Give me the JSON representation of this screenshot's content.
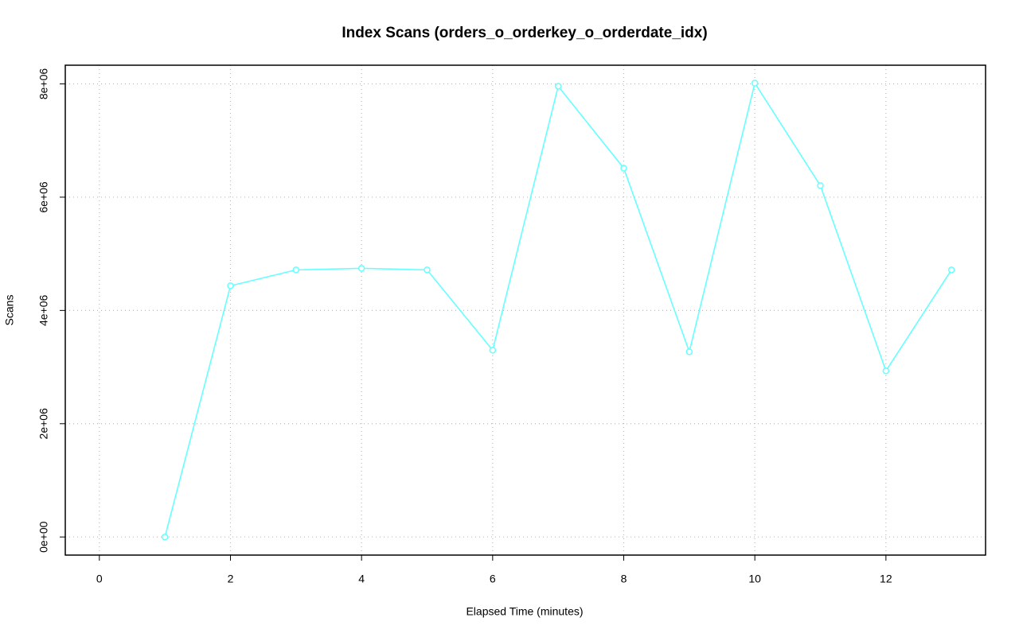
{
  "chart_data": {
    "type": "line",
    "title": "Index Scans (orders_o_orderkey_o_orderdate_idx)",
    "xlabel": "Elapsed Time (minutes)",
    "ylabel": "Scans",
    "x": [
      1,
      2,
      3,
      4,
      5,
      6,
      7,
      8,
      9,
      10,
      11,
      12,
      13
    ],
    "series": [
      {
        "name": "orders_o_orderkey_o_orderdate_idx",
        "color": "#66ffff",
        "values": [
          0,
          4435000,
          4716000,
          4744000,
          4716000,
          3298000,
          7958000,
          6512000,
          3270000,
          8014000,
          6204000,
          2933000,
          4716000
        ]
      }
    ],
    "xlim": [
      -0.52,
      13.52
    ],
    "xticks": [
      0,
      2,
      4,
      6,
      8,
      10,
      12
    ],
    "ylim": [
      -320000,
      8330000
    ],
    "yticks": [
      {
        "value": 0,
        "label": "0e+00"
      },
      {
        "value": 2000000,
        "label": "2e+06"
      },
      {
        "value": 4000000,
        "label": "4e+06"
      },
      {
        "value": 6000000,
        "label": "6e+06"
      },
      {
        "value": 8000000,
        "label": "8e+06"
      }
    ],
    "grid": true
  }
}
